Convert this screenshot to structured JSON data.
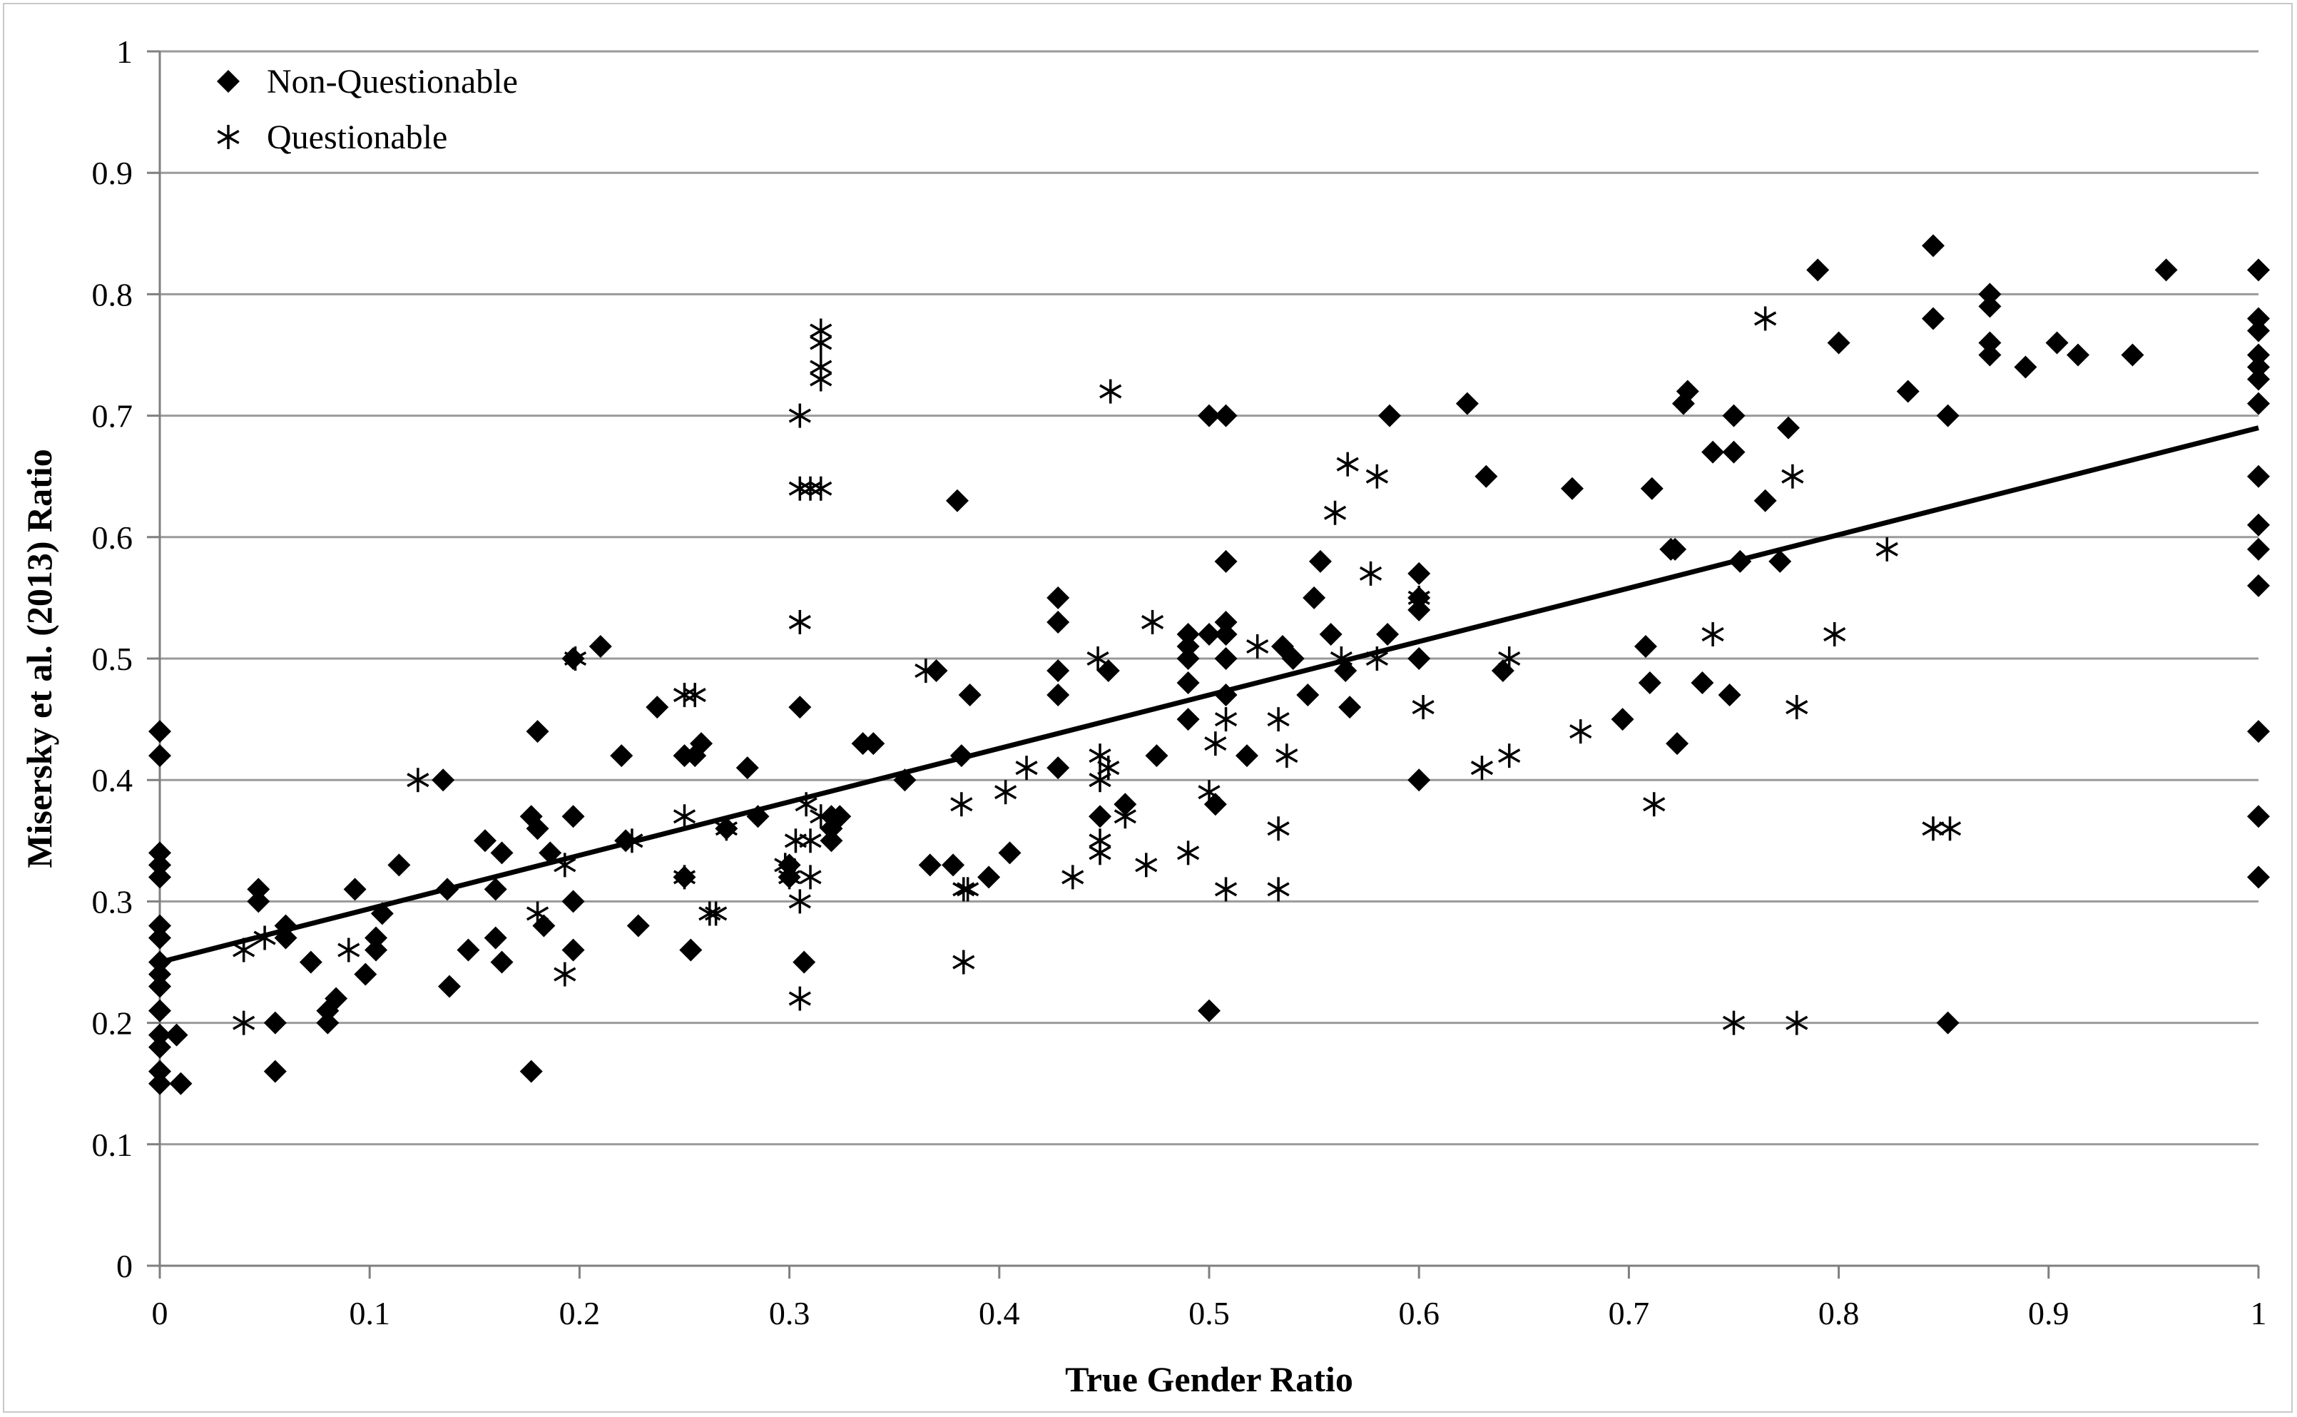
{
  "chart_data": {
    "type": "scatter",
    "title": "",
    "xlabel": "True Gender Ratio",
    "ylabel": "Misersky et al. (2013) Ratio",
    "xlim": [
      0,
      1
    ],
    "ylim": [
      0,
      1
    ],
    "x_ticks": [
      "0",
      "0.1",
      "0.2",
      "0.3",
      "0.4",
      "0.5",
      "0.6",
      "0.7",
      "0.8",
      "0.9",
      "1"
    ],
    "y_ticks": [
      "0",
      "0.1",
      "0.2",
      "0.3",
      "0.4",
      "0.5",
      "0.6",
      "0.7",
      "0.8",
      "0.9",
      "1"
    ],
    "grid": "horizontal",
    "legend_position": "top-left",
    "series": [
      {
        "name": "Non-Questionable",
        "marker": "diamond",
        "color": "#000000",
        "points": [
          [
            0,
            0.44
          ],
          [
            0,
            0.42
          ],
          [
            0,
            0.34
          ],
          [
            0,
            0.33
          ],
          [
            0,
            0.32
          ],
          [
            0,
            0.28
          ],
          [
            0,
            0.27
          ],
          [
            0,
            0.25
          ],
          [
            0,
            0.24
          ],
          [
            0,
            0.23
          ],
          [
            0,
            0.21
          ],
          [
            0,
            0.19
          ],
          [
            0,
            0.18
          ],
          [
            0,
            0.16
          ],
          [
            0,
            0.15
          ],
          [
            0.01,
            0.15
          ],
          [
            0.008,
            0.19
          ],
          [
            0.047,
            0.31
          ],
          [
            0.047,
            0.3
          ],
          [
            0.055,
            0.2
          ],
          [
            0.055,
            0.16
          ],
          [
            0.06,
            0.28
          ],
          [
            0.06,
            0.27
          ],
          [
            0.072,
            0.25
          ],
          [
            0.08,
            0.21
          ],
          [
            0.08,
            0.2
          ],
          [
            0.084,
            0.22
          ],
          [
            0.093,
            0.31
          ],
          [
            0.098,
            0.24
          ],
          [
            0.103,
            0.27
          ],
          [
            0.103,
            0.26
          ],
          [
            0.106,
            0.29
          ],
          [
            0.114,
            0.33
          ],
          [
            0.135,
            0.4
          ],
          [
            0.137,
            0.31
          ],
          [
            0.138,
            0.23
          ],
          [
            0.147,
            0.26
          ],
          [
            0.155,
            0.35
          ],
          [
            0.16,
            0.31
          ],
          [
            0.16,
            0.27
          ],
          [
            0.163,
            0.34
          ],
          [
            0.163,
            0.25
          ],
          [
            0.177,
            0.37
          ],
          [
            0.177,
            0.16
          ],
          [
            0.18,
            0.44
          ],
          [
            0.18,
            0.36
          ],
          [
            0.183,
            0.28
          ],
          [
            0.186,
            0.34
          ],
          [
            0.197,
            0.37
          ],
          [
            0.197,
            0.3
          ],
          [
            0.197,
            0.26
          ],
          [
            0.197,
            0.5
          ],
          [
            0.21,
            0.51
          ],
          [
            0.22,
            0.42
          ],
          [
            0.222,
            0.35
          ],
          [
            0.228,
            0.28
          ],
          [
            0.237,
            0.46
          ],
          [
            0.25,
            0.42
          ],
          [
            0.25,
            0.32
          ],
          [
            0.253,
            0.26
          ],
          [
            0.255,
            0.42
          ],
          [
            0.258,
            0.43
          ],
          [
            0.27,
            0.36
          ],
          [
            0.28,
            0.41
          ],
          [
            0.285,
            0.37
          ],
          [
            0.3,
            0.33
          ],
          [
            0.3,
            0.32
          ],
          [
            0.305,
            0.46
          ],
          [
            0.307,
            0.25
          ],
          [
            0.32,
            0.37
          ],
          [
            0.32,
            0.36
          ],
          [
            0.32,
            0.35
          ],
          [
            0.324,
            0.37
          ],
          [
            0.335,
            0.43
          ],
          [
            0.34,
            0.43
          ],
          [
            0.355,
            0.4
          ],
          [
            0.367,
            0.33
          ],
          [
            0.37,
            0.49
          ],
          [
            0.378,
            0.33
          ],
          [
            0.38,
            0.63
          ],
          [
            0.382,
            0.42
          ],
          [
            0.386,
            0.47
          ],
          [
            0.395,
            0.32
          ],
          [
            0.405,
            0.34
          ],
          [
            0.428,
            0.55
          ],
          [
            0.428,
            0.53
          ],
          [
            0.428,
            0.49
          ],
          [
            0.428,
            0.47
          ],
          [
            0.428,
            0.41
          ],
          [
            0.448,
            0.37
          ],
          [
            0.452,
            0.49
          ],
          [
            0.46,
            0.38
          ],
          [
            0.475,
            0.42
          ],
          [
            0.49,
            0.52
          ],
          [
            0.49,
            0.51
          ],
          [
            0.49,
            0.5
          ],
          [
            0.49,
            0.48
          ],
          [
            0.49,
            0.45
          ],
          [
            0.5,
            0.7
          ],
          [
            0.5,
            0.52
          ],
          [
            0.5,
            0.21
          ],
          [
            0.503,
            0.38
          ],
          [
            0.508,
            0.7
          ],
          [
            0.508,
            0.58
          ],
          [
            0.508,
            0.53
          ],
          [
            0.508,
            0.52
          ],
          [
            0.508,
            0.5
          ],
          [
            0.508,
            0.47
          ],
          [
            0.518,
            0.42
          ],
          [
            0.535,
            0.51
          ],
          [
            0.54,
            0.5
          ],
          [
            0.547,
            0.47
          ],
          [
            0.55,
            0.55
          ],
          [
            0.553,
            0.58
          ],
          [
            0.558,
            0.52
          ],
          [
            0.565,
            0.49
          ],
          [
            0.567,
            0.46
          ],
          [
            0.585,
            0.52
          ],
          [
            0.586,
            0.7
          ],
          [
            0.6,
            0.57
          ],
          [
            0.6,
            0.55
          ],
          [
            0.6,
            0.54
          ],
          [
            0.6,
            0.5
          ],
          [
            0.6,
            0.4
          ],
          [
            0.623,
            0.71
          ],
          [
            0.632,
            0.65
          ],
          [
            0.64,
            0.49
          ],
          [
            0.673,
            0.64
          ],
          [
            0.697,
            0.45
          ],
          [
            0.708,
            0.51
          ],
          [
            0.71,
            0.48
          ],
          [
            0.711,
            0.64
          ],
          [
            0.72,
            0.59
          ],
          [
            0.722,
            0.59
          ],
          [
            0.723,
            0.43
          ],
          [
            0.726,
            0.71
          ],
          [
            0.728,
            0.72
          ],
          [
            0.735,
            0.48
          ],
          [
            0.74,
            0.67
          ],
          [
            0.748,
            0.47
          ],
          [
            0.75,
            0.7
          ],
          [
            0.75,
            0.67
          ],
          [
            0.753,
            0.58
          ],
          [
            0.765,
            0.63
          ],
          [
            0.772,
            0.58
          ],
          [
            0.776,
            0.69
          ],
          [
            0.79,
            0.82
          ],
          [
            0.8,
            0.76
          ],
          [
            0.833,
            0.72
          ],
          [
            0.845,
            0.84
          ],
          [
            0.845,
            0.78
          ],
          [
            0.852,
            0.7
          ],
          [
            0.852,
            0.2
          ],
          [
            0.872,
            0.8
          ],
          [
            0.872,
            0.79
          ],
          [
            0.872,
            0.76
          ],
          [
            0.872,
            0.75
          ],
          [
            0.889,
            0.74
          ],
          [
            0.904,
            0.76
          ],
          [
            0.914,
            0.75
          ],
          [
            0.94,
            0.75
          ],
          [
            0.956,
            0.82
          ],
          [
            1,
            0.82
          ],
          [
            1,
            0.78
          ],
          [
            1,
            0.77
          ],
          [
            1,
            0.75
          ],
          [
            1,
            0.74
          ],
          [
            1,
            0.73
          ],
          [
            1,
            0.71
          ],
          [
            1,
            0.65
          ],
          [
            1,
            0.61
          ],
          [
            1,
            0.59
          ],
          [
            1,
            0.56
          ],
          [
            1,
            0.44
          ],
          [
            1,
            0.37
          ],
          [
            1,
            0.32
          ]
        ]
      },
      {
        "name": "Questionable",
        "marker": "asterisk",
        "color": "#000000",
        "points": [
          [
            0.04,
            0.26
          ],
          [
            0.04,
            0.2
          ],
          [
            0.05,
            0.27
          ],
          [
            0.09,
            0.26
          ],
          [
            0.123,
            0.4
          ],
          [
            0.18,
            0.29
          ],
          [
            0.193,
            0.33
          ],
          [
            0.193,
            0.24
          ],
          [
            0.198,
            0.5
          ],
          [
            0.225,
            0.35
          ],
          [
            0.25,
            0.47
          ],
          [
            0.25,
            0.37
          ],
          [
            0.25,
            0.32
          ],
          [
            0.255,
            0.47
          ],
          [
            0.262,
            0.29
          ],
          [
            0.265,
            0.29
          ],
          [
            0.27,
            0.36
          ],
          [
            0.298,
            0.33
          ],
          [
            0.3,
            0.32
          ],
          [
            0.303,
            0.35
          ],
          [
            0.305,
            0.7
          ],
          [
            0.305,
            0.64
          ],
          [
            0.305,
            0.53
          ],
          [
            0.305,
            0.3
          ],
          [
            0.305,
            0.22
          ],
          [
            0.308,
            0.38
          ],
          [
            0.31,
            0.35
          ],
          [
            0.31,
            0.32
          ],
          [
            0.31,
            0.64
          ],
          [
            0.315,
            0.77
          ],
          [
            0.315,
            0.76
          ],
          [
            0.315,
            0.74
          ],
          [
            0.315,
            0.73
          ],
          [
            0.315,
            0.64
          ],
          [
            0.315,
            0.37
          ],
          [
            0.365,
            0.49
          ],
          [
            0.382,
            0.38
          ],
          [
            0.383,
            0.31
          ],
          [
            0.385,
            0.31
          ],
          [
            0.383,
            0.25
          ],
          [
            0.403,
            0.39
          ],
          [
            0.413,
            0.41
          ],
          [
            0.435,
            0.32
          ],
          [
            0.447,
            0.5
          ],
          [
            0.448,
            0.42
          ],
          [
            0.448,
            0.4
          ],
          [
            0.448,
            0.35
          ],
          [
            0.448,
            0.34
          ],
          [
            0.452,
            0.41
          ],
          [
            0.453,
            0.72
          ],
          [
            0.46,
            0.37
          ],
          [
            0.47,
            0.33
          ],
          [
            0.473,
            0.53
          ],
          [
            0.49,
            0.34
          ],
          [
            0.5,
            0.39
          ],
          [
            0.503,
            0.43
          ],
          [
            0.508,
            0.45
          ],
          [
            0.508,
            0.31
          ],
          [
            0.523,
            0.51
          ],
          [
            0.533,
            0.45
          ],
          [
            0.533,
            0.36
          ],
          [
            0.533,
            0.31
          ],
          [
            0.537,
            0.42
          ],
          [
            0.56,
            0.62
          ],
          [
            0.563,
            0.5
          ],
          [
            0.566,
            0.66
          ],
          [
            0.577,
            0.57
          ],
          [
            0.58,
            0.65
          ],
          [
            0.58,
            0.5
          ],
          [
            0.6,
            0.55
          ],
          [
            0.602,
            0.46
          ],
          [
            0.63,
            0.41
          ],
          [
            0.643,
            0.5
          ],
          [
            0.643,
            0.42
          ],
          [
            0.677,
            0.44
          ],
          [
            0.712,
            0.38
          ],
          [
            0.74,
            0.52
          ],
          [
            0.75,
            0.2
          ],
          [
            0.765,
            0.78
          ],
          [
            0.778,
            0.65
          ],
          [
            0.78,
            0.46
          ],
          [
            0.78,
            0.2
          ],
          [
            0.798,
            0.52
          ],
          [
            0.823,
            0.59
          ],
          [
            0.845,
            0.36
          ],
          [
            0.853,
            0.36
          ]
        ]
      }
    ],
    "trendline": {
      "type": "linear",
      "x": [
        0,
        1
      ],
      "y": [
        0.25,
        0.69
      ]
    }
  }
}
